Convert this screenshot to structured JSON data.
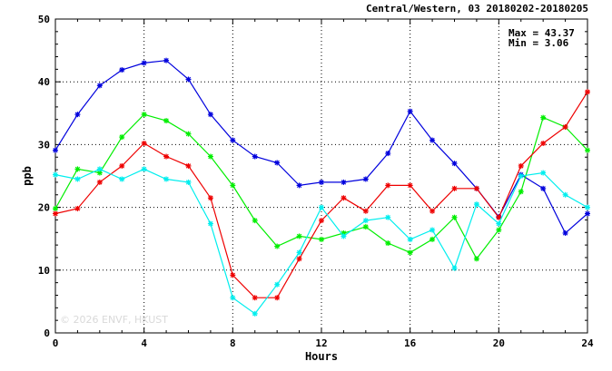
{
  "chart_data": {
    "type": "line",
    "title": "Central/Western, 03 20180202-20180205",
    "xlabel": "Hours",
    "ylabel": "ppb",
    "xlim": [
      0,
      24
    ],
    "ylim": [
      0,
      50
    ],
    "xticks": [
      0,
      4,
      8,
      12,
      16,
      20,
      24
    ],
    "yticks": [
      0,
      10,
      20,
      30,
      40,
      50
    ],
    "grid": true,
    "stats": {
      "max": "Max = 43.37",
      "min": "Min =  3.06"
    },
    "watermark": "© 2026  ENVF, HKUST",
    "x": [
      0,
      1,
      2,
      3,
      4,
      5,
      6,
      7,
      8,
      9,
      10,
      11,
      12,
      13,
      14,
      15,
      16,
      17,
      18,
      19,
      20,
      21,
      22,
      23,
      24
    ],
    "series": [
      {
        "color": "#0000dd",
        "values": [
          29.1,
          34.8,
          39.4,
          41.9,
          43.0,
          43.4,
          40.4,
          34.8,
          30.7,
          28.1,
          27.1,
          23.5,
          24.0,
          24.0,
          24.5,
          28.6,
          35.3,
          30.7,
          27.0,
          23.0,
          18.5,
          25.2,
          23.0,
          15.9,
          19.0
        ]
      },
      {
        "color": "#00ee00",
        "values": [
          19.8,
          26.1,
          25.5,
          31.2,
          34.8,
          33.8,
          31.7,
          28.1,
          23.5,
          17.9,
          13.8,
          15.4,
          14.9,
          15.9,
          16.9,
          14.3,
          12.8,
          14.9,
          18.4,
          11.8,
          16.4,
          22.5,
          34.3,
          32.8,
          29.1
        ]
      },
      {
        "color": "#ee0000",
        "values": [
          19.0,
          19.8,
          24.0,
          26.6,
          30.2,
          28.1,
          26.6,
          21.5,
          9.2,
          5.6,
          5.6,
          11.8,
          17.9,
          21.5,
          19.4,
          23.5,
          23.5,
          19.4,
          23.0,
          23.0,
          18.4,
          26.6,
          30.2,
          32.8,
          38.4
        ]
      },
      {
        "color": "#00eeee",
        "values": [
          25.2,
          24.5,
          26.1,
          24.5,
          26.1,
          24.5,
          24.0,
          17.4,
          5.6,
          3.06,
          7.7,
          12.8,
          20.0,
          15.4,
          17.9,
          18.4,
          14.9,
          16.4,
          10.3,
          20.5,
          17.4,
          25.0,
          25.5,
          22.0,
          20.0
        ]
      }
    ]
  }
}
